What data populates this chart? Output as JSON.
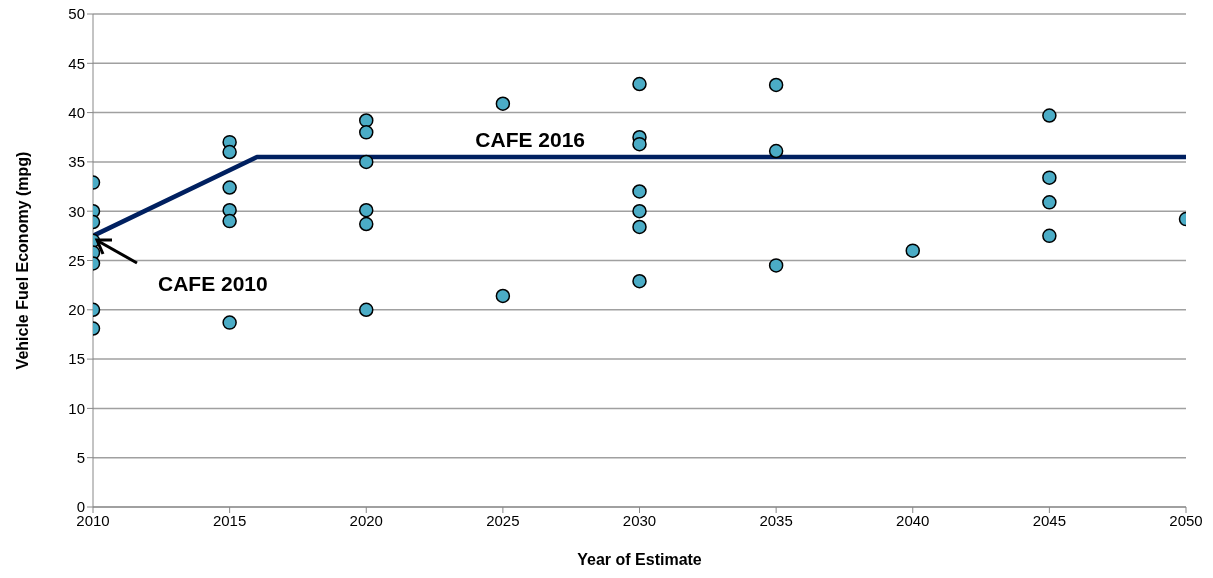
{
  "chart_data": {
    "type": "scatter",
    "xlabel": "Year of Estimate",
    "ylabel": "Vehicle Fuel Economy (mpg)",
    "series": [
      {
        "color": "#4bacc6",
        "marker": "circle",
        "x": [
          2010,
          2010,
          2010,
          2010,
          2010,
          2010,
          2010,
          2010,
          2015,
          2015,
          2015,
          2015,
          2015,
          2015,
          2020,
          2020,
          2020,
          2020,
          2020,
          2020,
          2025,
          2025,
          2030,
          2030,
          2030,
          2030,
          2030,
          2030,
          2030,
          2035,
          2035,
          2035,
          2040,
          2045,
          2045,
          2045,
          2045,
          2050
        ],
        "values": [
          32.9,
          30,
          28.9,
          27,
          25.8,
          24.7,
          20,
          18.1,
          37,
          36,
          32.4,
          30.1,
          29,
          18.7,
          39.2,
          38,
          35,
          30.1,
          28.7,
          20,
          40.9,
          21.4,
          42.9,
          37.5,
          36.8,
          32,
          30,
          28.4,
          22.9,
          42.8,
          36.1,
          24.5,
          26,
          39.7,
          33.4,
          30.9,
          27.5,
          29.2
        ]
      },
      {
        "type": "line",
        "color": "#002060",
        "marker": "none",
        "x": [
          2010,
          2016,
          2050
        ],
        "values": [
          27.5,
          35.5,
          35.5
        ]
      }
    ],
    "annotations": [
      {
        "text": "CAFE 2016",
        "x": 2026,
        "y": 35.5
      },
      "CAFE 2010"
    ],
    "xlim": [
      2010,
      2050
    ],
    "xticks": [
      2010,
      2015,
      2020,
      2025,
      2030,
      2035,
      2040,
      2045,
      2050
    ],
    "ylim": [
      0,
      50
    ],
    "yticks": [
      0,
      5,
      10,
      15,
      20,
      25,
      30,
      35,
      40,
      45,
      50
    ],
    "grid": "y",
    "legend": false,
    "line_style": "solid"
  }
}
